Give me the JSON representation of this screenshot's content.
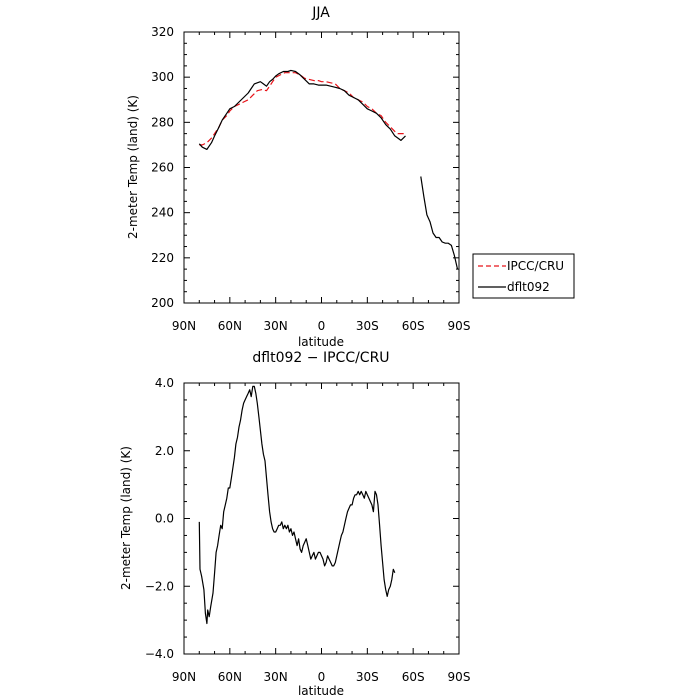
{
  "chart_data": [
    {
      "type": "line",
      "title": "JJA",
      "xlabel": "latitude",
      "ylabel": "2-meter Temp (land) (K)",
      "xlim": [
        90,
        -90
      ],
      "ylim": [
        200,
        320
      ],
      "x_ticks": [
        90,
        60,
        30,
        0,
        -30,
        -60,
        -90
      ],
      "x_tick_labels": [
        "90N",
        "60N",
        "30N",
        "0",
        "30S",
        "60S",
        "90S"
      ],
      "y_ticks": [
        200,
        220,
        240,
        260,
        280,
        300,
        320
      ],
      "y_tick_labels": [
        "200",
        "220",
        "240",
        "260",
        "280",
        "300",
        "320"
      ],
      "legend_position": "right",
      "series": [
        {
          "name": "IPCC/CRU",
          "color": "#e8141a",
          "dash": "dashed",
          "segments": [
            [
              [
                80,
                270
              ],
              [
                78,
                270
              ],
              [
                75,
                271
              ],
              [
                72,
                273
              ],
              [
                70,
                275
              ],
              [
                67,
                278
              ],
              [
                65,
                281
              ],
              [
                62,
                283
              ],
              [
                60,
                285
              ],
              [
                57,
                287
              ],
              [
                54,
                288
              ],
              [
                51,
                289
              ],
              [
                48,
                290
              ],
              [
                45,
                292
              ],
              [
                42,
                294
              ],
              [
                39,
                294.5
              ],
              [
                36,
                294
              ],
              [
                34,
                296
              ],
              [
                32,
                298
              ],
              [
                30,
                300
              ],
              [
                27,
                301
              ],
              [
                24,
                302
              ],
              [
                20,
                302
              ],
              [
                17,
                302
              ],
              [
                14,
                301
              ],
              [
                11,
                299.5
              ],
              [
                8,
                299
              ],
              [
                5,
                298.5
              ],
              [
                2,
                298.5
              ],
              [
                0,
                298
              ],
              [
                -3,
                298
              ],
              [
                -6,
                297.5
              ],
              [
                -9,
                297
              ],
              [
                -12,
                295
              ],
              [
                -15,
                294
              ],
              [
                -18,
                293
              ],
              [
                -21,
                291
              ],
              [
                -24,
                290
              ],
              [
                -27,
                289
              ],
              [
                -30,
                287
              ],
              [
                -33,
                286
              ],
              [
                -36,
                284
              ],
              [
                -39,
                283
              ],
              [
                -42,
                280
              ],
              [
                -45,
                278
              ],
              [
                -48,
                276
              ],
              [
                -50,
                275
              ],
              [
                -52,
                275
              ],
              [
                -55,
                275
              ]
            ]
          ]
        },
        {
          "name": "dflt092",
          "color": "#000000",
          "dash": "solid",
          "segments": [
            [
              [
                80,
                270.5
              ],
              [
                78,
                269
              ],
              [
                75,
                268
              ],
              [
                72,
                271
              ],
              [
                70,
                274
              ],
              [
                67,
                278
              ],
              [
                65,
                281
              ],
              [
                62,
                284
              ],
              [
                60,
                286
              ],
              [
                57,
                287
              ],
              [
                54,
                289
              ],
              [
                51,
                291
              ],
              [
                48,
                293
              ],
              [
                46,
                295
              ],
              [
                44,
                297
              ],
              [
                42,
                297.5
              ],
              [
                40,
                298
              ],
              [
                38,
                297
              ],
              [
                36,
                296
              ],
              [
                34,
                298
              ],
              [
                32,
                299
              ],
              [
                30,
                300.5
              ],
              [
                28,
                301.5
              ],
              [
                25,
                302.5
              ],
              [
                22,
                302.5
              ],
              [
                20,
                303
              ],
              [
                17,
                302.5
              ],
              [
                14,
                301
              ],
              [
                11,
                299
              ],
              [
                8,
                297
              ],
              [
                5,
                297
              ],
              [
                2,
                296.5
              ],
              [
                0,
                296.5
              ],
              [
                -3,
                296.5
              ],
              [
                -6,
                296
              ],
              [
                -9,
                295.5
              ],
              [
                -12,
                295
              ],
              [
                -15,
                294
              ],
              [
                -18,
                292
              ],
              [
                -21,
                291
              ],
              [
                -24,
                290
              ],
              [
                -27,
                288
              ],
              [
                -30,
                286
              ],
              [
                -33,
                285
              ],
              [
                -36,
                284
              ],
              [
                -39,
                282
              ],
              [
                -42,
                279
              ],
              [
                -45,
                277
              ],
              [
                -48,
                274
              ],
              [
                -50,
                273
              ],
              [
                -52,
                272
              ],
              [
                -55,
                274
              ]
            ],
            [
              [
                -65,
                256
              ],
              [
                -67,
                247
              ],
              [
                -69,
                239
              ],
              [
                -71,
                236
              ],
              [
                -73,
                231
              ],
              [
                -75,
                229
              ],
              [
                -77,
                229
              ],
              [
                -79,
                227
              ],
              [
                -81,
                226.5
              ],
              [
                -83,
                226.5
              ],
              [
                -85,
                225.5
              ],
              [
                -87,
                221
              ],
              [
                -89,
                215
              ]
            ]
          ]
        }
      ]
    },
    {
      "type": "line",
      "title": "dflt092 − IPCC/CRU",
      "xlabel": "latitude",
      "ylabel": "2-meter Temp (land) (K)",
      "xlim": [
        90,
        -90
      ],
      "ylim": [
        -4,
        4
      ],
      "x_ticks": [
        90,
        60,
        30,
        0,
        -30,
        -60,
        -90
      ],
      "x_tick_labels": [
        "90N",
        "60N",
        "30N",
        "0",
        "30S",
        "60S",
        "90S"
      ],
      "y_ticks": [
        -4,
        -2,
        0,
        2,
        4
      ],
      "y_tick_labels": [
        "−4.0",
        "−2.0",
        "0.0",
        "2.0",
        "4.0"
      ],
      "series": [
        {
          "name": "dflt092",
          "color": "#000000",
          "dash": "solid",
          "segments": [
            [
              [
                80,
                -0.1
              ],
              [
                79.5,
                -1.5
              ],
              [
                78.5,
                -1.7
              ],
              [
                77,
                -2.1
              ],
              [
                76,
                -2.8
              ],
              [
                75,
                -3.1
              ],
              [
                74.5,
                -2.7
              ],
              [
                73.5,
                -2.9
              ],
              [
                72.5,
                -2.6
              ],
              [
                71,
                -2.2
              ],
              [
                70,
                -1.6
              ],
              [
                69,
                -1.0
              ],
              [
                68,
                -0.8
              ],
              [
                67,
                -0.5
              ],
              [
                66,
                -0.2
              ],
              [
                65,
                -0.3
              ],
              [
                64,
                0.2
              ],
              [
                63,
                0.4
              ],
              [
                62,
                0.6
              ],
              [
                61,
                0.9
              ],
              [
                60,
                0.9
              ],
              [
                59,
                1.2
              ],
              [
                58,
                1.5
              ],
              [
                57,
                1.8
              ],
              [
                56,
                2.2
              ],
              [
                55,
                2.4
              ],
              [
                54,
                2.7
              ],
              [
                53,
                2.9
              ],
              [
                52,
                3.2
              ],
              [
                51,
                3.4
              ],
              [
                50,
                3.5
              ],
              [
                49,
                3.6
              ],
              [
                48,
                3.7
              ],
              [
                47,
                3.8
              ],
              [
                46,
                3.6
              ],
              [
                45,
                3.9
              ],
              [
                44,
                3.9
              ],
              [
                43,
                3.7
              ],
              [
                42,
                3.4
              ],
              [
                41,
                3.0
              ],
              [
                40,
                2.6
              ],
              [
                39,
                2.2
              ],
              [
                38,
                1.9
              ],
              [
                37,
                1.7
              ],
              [
                36,
                1.2
              ],
              [
                35,
                0.7
              ],
              [
                34,
                0.2
              ],
              [
                33,
                -0.1
              ],
              [
                32,
                -0.3
              ],
              [
                31,
                -0.4
              ],
              [
                30,
                -0.4
              ],
              [
                29,
                -0.3
              ],
              [
                28,
                -0.2
              ],
              [
                27,
                -0.2
              ],
              [
                26,
                -0.1
              ],
              [
                25,
                -0.3
              ],
              [
                24,
                -0.2
              ],
              [
                23,
                -0.3
              ],
              [
                22,
                -0.2
              ],
              [
                21,
                -0.4
              ],
              [
                20,
                -0.3
              ],
              [
                19,
                -0.5
              ],
              [
                18,
                -0.4
              ],
              [
                17,
                -0.6
              ],
              [
                16,
                -0.8
              ],
              [
                15,
                -0.6
              ],
              [
                14,
                -0.9
              ],
              [
                13,
                -1.0
              ],
              [
                12,
                -0.8
              ],
              [
                11,
                -0.7
              ],
              [
                10,
                -0.6
              ],
              [
                9,
                -0.8
              ],
              [
                8,
                -1.0
              ],
              [
                7,
                -1.2
              ],
              [
                6,
                -1.1
              ],
              [
                5,
                -1.0
              ],
              [
                4,
                -1.2
              ],
              [
                3,
                -1.1
              ],
              [
                2,
                -1.0
              ],
              [
                1,
                -1.0
              ],
              [
                0,
                -1.1
              ],
              [
                -1,
                -1.2
              ],
              [
                -2,
                -1.4
              ],
              [
                -3,
                -1.3
              ],
              [
                -4,
                -1.1
              ],
              [
                -5,
                -1.2
              ],
              [
                -6,
                -1.3
              ],
              [
                -7,
                -1.4
              ],
              [
                -8,
                -1.4
              ],
              [
                -9,
                -1.3
              ],
              [
                -10,
                -1.1
              ],
              [
                -11,
                -0.9
              ],
              [
                -12,
                -0.7
              ],
              [
                -13,
                -0.5
              ],
              [
                -14,
                -0.4
              ],
              [
                -15,
                -0.2
              ],
              [
                -16,
                0.0
              ],
              [
                -17,
                0.2
              ],
              [
                -18,
                0.3
              ],
              [
                -19,
                0.4
              ],
              [
                -20,
                0.4
              ],
              [
                -21,
                0.6
              ],
              [
                -22,
                0.7
              ],
              [
                -23,
                0.7
              ],
              [
                -24,
                0.8
              ],
              [
                -25,
                0.7
              ],
              [
                -26,
                0.8
              ],
              [
                -27,
                0.7
              ],
              [
                -28,
                0.6
              ],
              [
                -29,
                0.8
              ],
              [
                -30,
                0.7
              ],
              [
                -31,
                0.6
              ],
              [
                -32,
                0.5
              ],
              [
                -33,
                0.4
              ],
              [
                -34,
                0.2
              ],
              [
                -35,
                0.8
              ],
              [
                -36,
                0.7
              ],
              [
                -37,
                0.4
              ],
              [
                -38,
                -0.2
              ],
              [
                -39,
                -0.8
              ],
              [
                -40,
                -1.3
              ],
              [
                -41,
                -1.8
              ],
              [
                -42,
                -2.1
              ],
              [
                -43,
                -2.3
              ],
              [
                -44,
                -2.1
              ],
              [
                -45,
                -2.0
              ],
              [
                -46,
                -1.8
              ],
              [
                -47,
                -1.5
              ],
              [
                -48,
                -1.6
              ]
            ]
          ]
        }
      ]
    }
  ]
}
